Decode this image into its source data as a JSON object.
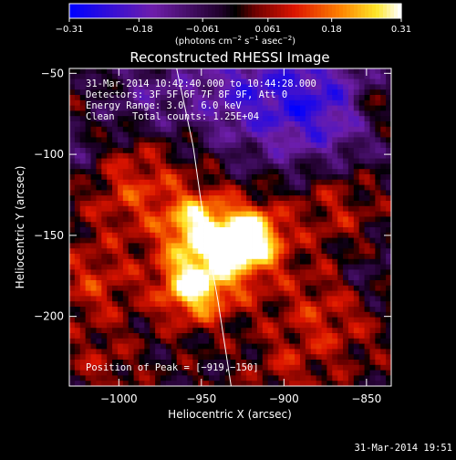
{
  "chart_data": {
    "type": "heatmap",
    "title": "Reconstructed RHESSI Image",
    "xlabel": "Heliocentric X (arcsec)",
    "ylabel": "Heliocentric Y (arcsec)",
    "xlim": [
      -1030,
      -835
    ],
    "ylim": [
      -243,
      -47
    ],
    "x_ticks": [
      -1000,
      -950,
      -900,
      -850
    ],
    "x_tick_labels": [
      "−1000",
      "−950",
      "−900",
      "−850"
    ],
    "y_ticks": [
      -200,
      -150,
      -100,
      -50
    ],
    "y_tick_labels": [
      "−200",
      "−150",
      "−100",
      "−50"
    ],
    "colorbar": {
      "min": -0.31,
      "max": 0.31,
      "ticks": [
        -0.31,
        -0.18,
        -0.061,
        0.061,
        0.18,
        0.31
      ],
      "tick_labels": [
        "−0.31",
        "−0.18",
        "−0.061",
        "0.061",
        "0.18",
        "0.31"
      ],
      "units_text": "(photons cm",
      "units_exp1": "−2",
      "units_mid": " s",
      "units_exp2": "−1",
      "units_mid2": " asec",
      "units_exp3": "−2",
      "units_end": ")"
    },
    "sources": [
      {
        "x": -920,
        "y": -152,
        "peak": 0.31,
        "sigma": 13
      },
      {
        "x": -955,
        "y": -182,
        "peak": 0.25,
        "sigma": 14
      },
      {
        "x": -953,
        "y": -143,
        "peak": 0.2,
        "sigma": 13
      },
      {
        "x": -940,
        "y": -162,
        "peak": 0.16,
        "sigma": 22
      },
      {
        "x": -990,
        "y": -120,
        "peak": 0.12,
        "sigma": 22
      },
      {
        "x": -1015,
        "y": -180,
        "peak": 0.1,
        "sigma": 18
      },
      {
        "x": -875,
        "y": -200,
        "peak": 0.1,
        "sigma": 22
      },
      {
        "x": -870,
        "y": -130,
        "peak": 0.09,
        "sigma": 18
      },
      {
        "x": -1010,
        "y": -230,
        "peak": 0.06,
        "sigma": 14
      },
      {
        "x": -900,
        "y": -235,
        "peak": 0.06,
        "sigma": 14
      },
      {
        "x": -845,
        "y": -70,
        "peak": 0.1,
        "sigma": 10
      }
    ],
    "negative_regions": [
      {
        "x": -880,
        "y": -70,
        "peak": -0.22,
        "sigma": 28
      },
      {
        "x": -930,
        "y": -60,
        "peak": -0.15,
        "sigma": 25
      },
      {
        "x": -985,
        "y": -65,
        "peak": -0.1,
        "sigma": 18
      },
      {
        "x": -1025,
        "y": -100,
        "peak": -0.08,
        "sigma": 14
      },
      {
        "x": -850,
        "y": -175,
        "peak": -0.06,
        "sigma": 14
      }
    ],
    "limb_curve": [
      [
        -965,
        -47
      ],
      [
        -955,
        -95
      ],
      [
        -948,
        -145
      ],
      [
        -940,
        -190
      ],
      [
        -932,
        -243
      ]
    ],
    "annotations": {
      "time_range": "31-Mar-2014 10:42:40.000 to 10:44:28.000",
      "detectors": "Detectors: 3F 5F 6F 7F 8F 9F, Att 0",
      "energy": "Energy Range: 3.0 - 6.0 keV",
      "clean_label": "Clean",
      "total_counts": "Total counts: 1.25E+04",
      "peak_position": "Position of Peak = [−919,−150]"
    },
    "footer_timestamp": "31-Mar-2014 19:51",
    "colors": {
      "background": "#000000",
      "text": "#ffffff",
      "axis": "#ffffff"
    }
  }
}
